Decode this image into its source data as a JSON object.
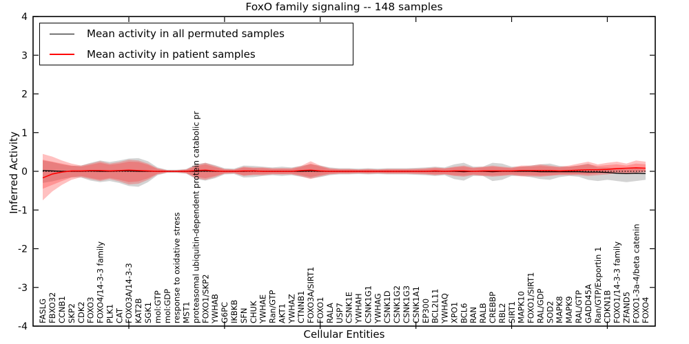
{
  "chart_data": {
    "type": "line",
    "title": "FoxO family signaling -- 148 samples",
    "xlabel": "Cellular Entities",
    "ylabel": "Inferred Activity",
    "ylim": [
      -4,
      4
    ],
    "yticks": [
      {
        "v": 4,
        "label": "4"
      },
      {
        "v": 3,
        "label": "3"
      },
      {
        "v": 2,
        "label": "2"
      },
      {
        "v": 1,
        "label": "1"
      },
      {
        "v": 0,
        "label": "0"
      },
      {
        "v": -1,
        "label": "-1"
      },
      {
        "v": -2,
        "label": "-2"
      },
      {
        "v": -3,
        "label": "-3"
      },
      {
        "v": -4,
        "label": "-4"
      }
    ],
    "x_major_ticks_at_values": [
      10,
      20,
      30,
      40,
      50,
      60
    ],
    "grid": false,
    "legend_position": "upper-left",
    "zero_line": true,
    "colors": {
      "permuted_line": "#000000",
      "patient_line": "#ff0000",
      "permuted_band": "#808080",
      "patient_band": "#ff3030"
    },
    "series_names": [
      "Mean activity in all permuted samples",
      "Mean activity in patient samples"
    ],
    "points": [
      {
        "n": "FASLG",
        "b": 0.02,
        "r": -0.17,
        "gu": 0.28,
        "gl": -0.3,
        "ou": 0.45,
        "ol": -0.75,
        "iu": 0.3,
        "il": -0.45
      },
      {
        "n": "FBXO32",
        "b": 0.01,
        "r": -0.07,
        "gu": 0.24,
        "gl": -0.26,
        "ou": 0.38,
        "ol": -0.52,
        "iu": 0.25,
        "il": -0.35
      },
      {
        "n": "CCNB1",
        "b": 0.0,
        "r": -0.02,
        "gu": 0.18,
        "gl": -0.2,
        "ou": 0.28,
        "ol": -0.35,
        "iu": 0.2,
        "il": -0.25
      },
      {
        "n": "SKP2",
        "b": 0.0,
        "r": 0.01,
        "gu": 0.14,
        "gl": -0.15,
        "ou": 0.2,
        "ol": -0.22,
        "iu": 0.15,
        "il": -0.16
      },
      {
        "n": "CDK2",
        "b": 0.0,
        "r": 0.01,
        "gu": 0.15,
        "gl": -0.16,
        "ou": 0.15,
        "ol": -0.15,
        "iu": 0.12,
        "il": -0.12
      },
      {
        "n": "FOXO3",
        "b": 0.01,
        "r": 0.02,
        "gu": 0.22,
        "gl": -0.24,
        "ou": 0.2,
        "ol": -0.2,
        "iu": 0.17,
        "il": -0.17
      },
      {
        "n": "FOXO4/14-3-3 family",
        "b": 0.0,
        "r": 0.02,
        "gu": 0.28,
        "gl": -0.28,
        "ou": 0.26,
        "ol": -0.25,
        "iu": 0.22,
        "il": -0.22
      },
      {
        "n": "PLK1",
        "b": 0.0,
        "r": 0.01,
        "gu": 0.24,
        "gl": -0.25,
        "ou": 0.2,
        "ol": -0.2,
        "iu": 0.17,
        "il": -0.17
      },
      {
        "n": "CAT",
        "b": 0.01,
        "r": 0.02,
        "gu": 0.28,
        "gl": -0.3,
        "ou": 0.24,
        "ol": -0.26,
        "iu": 0.2,
        "il": -0.22
      },
      {
        "n": "FOXO3A/14-3-3",
        "b": 0.01,
        "r": 0.03,
        "gu": 0.33,
        "gl": -0.38,
        "ou": 0.3,
        "ol": -0.34,
        "iu": 0.25,
        "il": -0.28
      },
      {
        "n": "KAT2B",
        "b": 0.0,
        "r": 0.02,
        "gu": 0.34,
        "gl": -0.4,
        "ou": 0.28,
        "ol": -0.32,
        "iu": 0.24,
        "il": -0.26
      },
      {
        "n": "SGK1",
        "b": 0.0,
        "r": 0.01,
        "gu": 0.26,
        "gl": -0.28,
        "ou": 0.2,
        "ol": -0.22,
        "iu": 0.17,
        "il": -0.18
      },
      {
        "n": "mol:GTP",
        "b": 0.0,
        "r": 0.0,
        "gu": 0.1,
        "gl": -0.1,
        "ou": 0.08,
        "ol": -0.08,
        "iu": 0.06,
        "il": -0.06
      },
      {
        "n": "mol:GDP",
        "b": 0.0,
        "r": 0.0,
        "gu": 0.04,
        "gl": -0.04,
        "ou": 0.03,
        "ol": -0.03,
        "iu": 0.02,
        "il": -0.02
      },
      {
        "n": "response to oxidative stress",
        "b": 0.0,
        "r": 0.0,
        "gu": 0.04,
        "gl": -0.04,
        "ou": 0.03,
        "ol": -0.03,
        "iu": 0.02,
        "il": -0.02
      },
      {
        "n": "MST1",
        "b": 0.0,
        "r": 0.0,
        "gu": 0.06,
        "gl": -0.06,
        "ou": 0.05,
        "ol": -0.05,
        "iu": 0.04,
        "il": -0.04
      },
      {
        "n": "proteasomal ubiquitin-dependent protein catabolic pr",
        "b": 0.0,
        "r": 0.02,
        "gu": 0.18,
        "gl": -0.2,
        "ou": 0.16,
        "ol": -0.18,
        "iu": 0.13,
        "il": -0.14
      },
      {
        "n": "FOXO1/SKP2",
        "b": 0.01,
        "r": 0.03,
        "gu": 0.22,
        "gl": -0.24,
        "ou": 0.22,
        "ol": -0.22,
        "iu": 0.18,
        "il": -0.18
      },
      {
        "n": "YWHAB",
        "b": 0.0,
        "r": 0.01,
        "gu": 0.16,
        "gl": -0.18,
        "ou": 0.14,
        "ol": -0.15,
        "iu": 0.11,
        "il": -0.12
      },
      {
        "n": "G6PC",
        "b": 0.0,
        "r": 0.0,
        "gu": 0.08,
        "gl": -0.08,
        "ou": 0.06,
        "ol": -0.06,
        "iu": 0.05,
        "il": -0.05
      },
      {
        "n": "IKBKB",
        "b": 0.0,
        "r": 0.0,
        "gu": 0.07,
        "gl": -0.07,
        "ou": 0.05,
        "ol": -0.05,
        "iu": 0.04,
        "il": -0.04
      },
      {
        "n": "SFN",
        "b": 0.0,
        "r": 0.01,
        "gu": 0.15,
        "gl": -0.16,
        "ou": 0.12,
        "ol": -0.12,
        "iu": 0.1,
        "il": -0.1
      },
      {
        "n": "CHUK",
        "b": 0.01,
        "r": 0.01,
        "gu": 0.14,
        "gl": -0.15,
        "ou": 0.1,
        "ol": -0.1,
        "iu": 0.08,
        "il": -0.08
      },
      {
        "n": "YWHAE",
        "b": 0.0,
        "r": 0.0,
        "gu": 0.12,
        "gl": -0.12,
        "ou": 0.1,
        "ol": -0.1,
        "iu": 0.08,
        "il": -0.08
      },
      {
        "n": "Ran/GTP",
        "b": 0.0,
        "r": 0.0,
        "gu": 0.1,
        "gl": -0.1,
        "ou": 0.08,
        "ol": -0.08,
        "iu": 0.06,
        "il": -0.06
      },
      {
        "n": "AKT1",
        "b": 0.0,
        "r": 0.0,
        "gu": 0.12,
        "gl": -0.12,
        "ou": 0.08,
        "ol": -0.08,
        "iu": 0.07,
        "il": -0.07
      },
      {
        "n": "YWHAZ",
        "b": 0.0,
        "r": 0.0,
        "gu": 0.1,
        "gl": -0.1,
        "ou": 0.08,
        "ol": -0.08,
        "iu": 0.06,
        "il": -0.06
      },
      {
        "n": "CTNNB1",
        "b": 0.0,
        "r": 0.02,
        "gu": 0.14,
        "gl": -0.14,
        "ou": 0.14,
        "ol": -0.13,
        "iu": 0.11,
        "il": -0.1
      },
      {
        "n": "FOXO3A/SIRT1",
        "b": 0.01,
        "r": 0.03,
        "gu": 0.18,
        "gl": -0.18,
        "ou": 0.26,
        "ol": -0.2,
        "iu": 0.2,
        "il": -0.15
      },
      {
        "n": "FOXO1",
        "b": 0.0,
        "r": 0.01,
        "gu": 0.15,
        "gl": -0.15,
        "ou": 0.15,
        "ol": -0.13,
        "iu": 0.12,
        "il": -0.1
      },
      {
        "n": "RALA",
        "b": 0.0,
        "r": 0.0,
        "gu": 0.1,
        "gl": -0.1,
        "ou": 0.08,
        "ol": -0.08,
        "iu": 0.06,
        "il": -0.06
      },
      {
        "n": "USP7",
        "b": 0.0,
        "r": 0.0,
        "gu": 0.08,
        "gl": -0.08,
        "ou": 0.06,
        "ol": -0.06,
        "iu": 0.05,
        "il": -0.05
      },
      {
        "n": "CSNK1E",
        "b": 0.0,
        "r": 0.0,
        "gu": 0.08,
        "gl": -0.08,
        "ou": 0.06,
        "ol": -0.06,
        "iu": 0.05,
        "il": -0.05
      },
      {
        "n": "YWHAH",
        "b": 0.0,
        "r": 0.0,
        "gu": 0.07,
        "gl": -0.07,
        "ou": 0.05,
        "ol": -0.05,
        "iu": 0.04,
        "il": -0.04
      },
      {
        "n": "CSNK1G1",
        "b": 0.0,
        "r": 0.0,
        "gu": 0.08,
        "gl": -0.08,
        "ou": 0.06,
        "ol": -0.06,
        "iu": 0.05,
        "il": -0.05
      },
      {
        "n": "YWHAG",
        "b": 0.0,
        "r": 0.0,
        "gu": 0.07,
        "gl": -0.07,
        "ou": 0.05,
        "ol": -0.05,
        "iu": 0.04,
        "il": -0.04
      },
      {
        "n": "CSNK1D",
        "b": 0.0,
        "r": 0.0,
        "gu": 0.08,
        "gl": -0.08,
        "ou": 0.06,
        "ol": -0.06,
        "iu": 0.05,
        "il": -0.05
      },
      {
        "n": "CSNK1G2",
        "b": 0.0,
        "r": 0.0,
        "gu": 0.08,
        "gl": -0.08,
        "ou": 0.06,
        "ol": -0.06,
        "iu": 0.05,
        "il": -0.05
      },
      {
        "n": "CSNK1G3",
        "b": 0.0,
        "r": 0.0,
        "gu": 0.08,
        "gl": -0.08,
        "ou": 0.06,
        "ol": -0.06,
        "iu": 0.05,
        "il": -0.05
      },
      {
        "n": "CSNK1A1",
        "b": 0.0,
        "r": 0.0,
        "gu": 0.09,
        "gl": -0.09,
        "ou": 0.07,
        "ol": -0.07,
        "iu": 0.05,
        "il": -0.05
      },
      {
        "n": "EP300",
        "b": 0.0,
        "r": 0.0,
        "gu": 0.1,
        "gl": -0.1,
        "ou": 0.08,
        "ol": -0.08,
        "iu": 0.06,
        "il": -0.06
      },
      {
        "n": "BCL2L11",
        "b": 0.0,
        "r": 0.01,
        "gu": 0.12,
        "gl": -0.12,
        "ou": 0.1,
        "ol": -0.1,
        "iu": 0.08,
        "il": -0.08
      },
      {
        "n": "YWHAQ",
        "b": 0.0,
        "r": 0.0,
        "gu": 0.1,
        "gl": -0.1,
        "ou": 0.08,
        "ol": -0.08,
        "iu": 0.07,
        "il": -0.07
      },
      {
        "n": "XPO1",
        "b": 0.0,
        "r": 0.01,
        "gu": 0.18,
        "gl": -0.2,
        "ou": 0.12,
        "ol": -0.12,
        "iu": 0.1,
        "il": -0.1
      },
      {
        "n": "BCL6",
        "b": -0.01,
        "r": 0.01,
        "gu": 0.22,
        "gl": -0.24,
        "ou": 0.15,
        "ol": -0.14,
        "iu": 0.12,
        "il": -0.11
      },
      {
        "n": "RAN",
        "b": 0.0,
        "r": 0.0,
        "gu": 0.12,
        "gl": -0.12,
        "ou": 0.1,
        "ol": -0.1,
        "iu": 0.08,
        "il": -0.08
      },
      {
        "n": "RALB",
        "b": 0.0,
        "r": 0.01,
        "gu": 0.12,
        "gl": -0.12,
        "ou": 0.12,
        "ol": -0.12,
        "iu": 0.1,
        "il": -0.1
      },
      {
        "n": "CREBBP",
        "b": -0.01,
        "r": 0.01,
        "gu": 0.22,
        "gl": -0.25,
        "ou": 0.15,
        "ol": -0.14,
        "iu": 0.12,
        "il": -0.11
      },
      {
        "n": "RBL2",
        "b": 0.0,
        "r": 0.01,
        "gu": 0.2,
        "gl": -0.22,
        "ou": 0.12,
        "ol": -0.12,
        "iu": 0.1,
        "il": -0.1
      },
      {
        "n": "SIRT1",
        "b": 0.0,
        "r": 0.01,
        "gu": 0.12,
        "gl": -0.12,
        "ou": 0.1,
        "ol": -0.1,
        "iu": 0.08,
        "il": -0.08
      },
      {
        "n": "MAPK10",
        "b": 0.0,
        "r": 0.02,
        "gu": 0.12,
        "gl": -0.12,
        "ou": 0.15,
        "ol": -0.13,
        "iu": 0.12,
        "il": -0.1
      },
      {
        "n": "FOXO1/SIRT1",
        "b": 0.0,
        "r": 0.02,
        "gu": 0.15,
        "gl": -0.15,
        "ou": 0.15,
        "ol": -0.13,
        "iu": 0.12,
        "il": -0.1
      },
      {
        "n": "RAL/GDP",
        "b": -0.01,
        "r": 0.02,
        "gu": 0.18,
        "gl": -0.2,
        "ou": 0.18,
        "ol": -0.14,
        "iu": 0.14,
        "il": -0.11
      },
      {
        "n": "SOD2",
        "b": -0.01,
        "r": 0.02,
        "gu": 0.2,
        "gl": -0.22,
        "ou": 0.15,
        "ol": -0.12,
        "iu": 0.12,
        "il": -0.1
      },
      {
        "n": "MAPK8",
        "b": -0.01,
        "r": 0.01,
        "gu": 0.14,
        "gl": -0.15,
        "ou": 0.12,
        "ol": -0.1,
        "iu": 0.1,
        "il": -0.08
      },
      {
        "n": "MAPK9",
        "b": -0.01,
        "r": 0.02,
        "gu": 0.12,
        "gl": -0.12,
        "ou": 0.15,
        "ol": -0.1,
        "iu": 0.12,
        "il": -0.08
      },
      {
        "n": "RAL/GTP",
        "b": -0.01,
        "r": 0.03,
        "gu": 0.15,
        "gl": -0.14,
        "ou": 0.2,
        "ol": -0.1,
        "iu": 0.15,
        "il": -0.07
      },
      {
        "n": "GADD45A",
        "b": -0.02,
        "r": 0.04,
        "gu": 0.2,
        "gl": -0.22,
        "ou": 0.25,
        "ol": -0.12,
        "iu": 0.18,
        "il": -0.08
      },
      {
        "n": "Ran/GTP/Exportin 1",
        "b": -0.02,
        "r": 0.04,
        "gu": 0.1,
        "gl": -0.25,
        "ou": 0.18,
        "ol": -0.1,
        "iu": 0.14,
        "il": -0.06
      },
      {
        "n": "CDKN1B",
        "b": -0.03,
        "r": 0.05,
        "gu": 0.1,
        "gl": -0.22,
        "ou": 0.22,
        "ol": -0.08,
        "iu": 0.16,
        "il": -0.04
      },
      {
        "n": "FOXO1/14-3-3 family",
        "b": -0.05,
        "r": 0.07,
        "gu": 0.08,
        "gl": -0.25,
        "ou": 0.25,
        "ol": -0.05,
        "iu": 0.18,
        "il": -0.02
      },
      {
        "n": "ZFAND5",
        "b": -0.06,
        "r": 0.08,
        "gu": 0.06,
        "gl": -0.28,
        "ou": 0.2,
        "ol": -0.06,
        "iu": 0.15,
        "il": -0.03
      },
      {
        "n": "FOXO1-3a-4/beta catenin",
        "b": -0.05,
        "r": 0.09,
        "gu": 0.08,
        "gl": -0.25,
        "ou": 0.28,
        "ol": -0.04,
        "iu": 0.2,
        "il": -0.01
      },
      {
        "n": "FOXO4",
        "b": -0.06,
        "r": 0.08,
        "gu": 0.05,
        "gl": -0.22,
        "ou": 0.25,
        "ol": -0.03,
        "iu": 0.18,
        "il": 0.0
      }
    ]
  },
  "legend": {
    "items": [
      {
        "label": "Mean activity in all permuted samples",
        "color": "#000000"
      },
      {
        "label": "Mean activity in patient samples",
        "color": "#ff0000"
      }
    ]
  }
}
